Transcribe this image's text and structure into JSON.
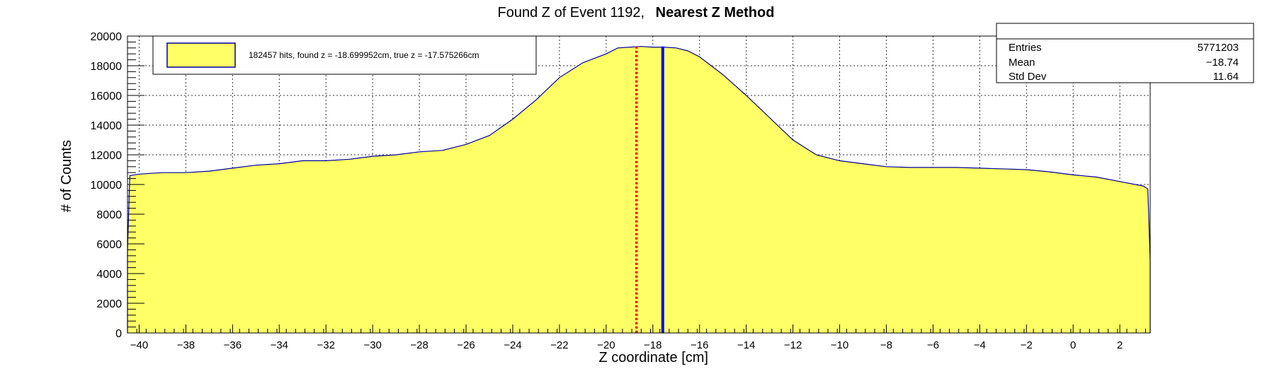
{
  "title": {
    "prefix": "Found Z of Event 1192,",
    "bold": "Nearest Z Method"
  },
  "stats_box": {
    "rows": [
      {
        "label": "Entries",
        "value": "5771203"
      },
      {
        "label": "Mean",
        "value": "−18.74"
      },
      {
        "label": "Std Dev",
        "value": "11.64"
      }
    ]
  },
  "legend": {
    "text": "182457 hits, found z = -18.699952cm, true z = -17.575266cm"
  },
  "colors": {
    "fill": "#ffff66",
    "outline": "#000099",
    "true_z_line": "#0000ff",
    "found_z_line": "#ff0000",
    "grid": "#000000"
  },
  "chart_data": {
    "type": "area",
    "title": "Found Z of Event 1192, Nearest Z Method",
    "xlabel": "Z coordinate [cm]",
    "ylabel": "# of Counts",
    "xlim": [
      -40.5,
      3.3
    ],
    "ylim": [
      0,
      20000
    ],
    "grid": true,
    "legend_position": "top-left",
    "x_ticks": [
      -40,
      -38,
      -36,
      -34,
      -32,
      -30,
      -28,
      -26,
      -24,
      -22,
      -20,
      -18,
      -16,
      -14,
      -12,
      -10,
      -8,
      -6,
      -4,
      -2,
      0,
      2
    ],
    "x_tick_labels": [
      "−40",
      "−38",
      "−36",
      "−34",
      "−32",
      "−30",
      "−28",
      "−26",
      "−24",
      "−22",
      "−20",
      "−18",
      "−16",
      "−14",
      "−12",
      "−10",
      "−8",
      "−6",
      "−4",
      "−2",
      "0",
      "2"
    ],
    "y_ticks": [
      0,
      2000,
      4000,
      6000,
      8000,
      10000,
      12000,
      14000,
      16000,
      18000,
      20000
    ],
    "y_tick_labels": [
      "0",
      "2000",
      "4000",
      "6000",
      "8000",
      "10000",
      "12000",
      "14000",
      "16000",
      "18000",
      "20000"
    ],
    "series": [
      {
        "x": [
          -40.5,
          -40.4,
          -40,
          -39,
          -38,
          -37,
          -36,
          -35,
          -34,
          -33,
          -32,
          -31,
          -30,
          -29,
          -28,
          -27,
          -26,
          -25,
          -24,
          -23,
          -22,
          -21,
          -20,
          -19.5,
          -19,
          -18.5,
          -18,
          -17.5,
          -17,
          -16.5,
          -16,
          -15,
          -14,
          -13,
          -12,
          -11,
          -10,
          -9,
          -8,
          -7,
          -6,
          -5,
          -4,
          -3,
          -2,
          -1,
          0,
          1,
          2,
          3,
          3.2,
          3.3
        ],
        "y": [
          5500,
          10600,
          10700,
          10800,
          10800,
          10900,
          11100,
          11300,
          11400,
          11600,
          11600,
          11700,
          11900,
          12000,
          12200,
          12300,
          12700,
          13300,
          14400,
          15700,
          17200,
          18200,
          18800,
          19200,
          19250,
          19300,
          19250,
          19250,
          19200,
          19000,
          18600,
          17400,
          16000,
          14500,
          13000,
          12000,
          11600,
          11400,
          11200,
          11150,
          11150,
          11150,
          11100,
          11050,
          11000,
          10850,
          10650,
          10500,
          10200,
          9900,
          9700,
          4900
        ]
      }
    ],
    "markers": [
      {
        "x": -18.699952,
        "style": "dotted",
        "color": "#ff0000"
      },
      {
        "x": -17.575266,
        "style": "solid",
        "color": "#0000ff"
      }
    ]
  }
}
